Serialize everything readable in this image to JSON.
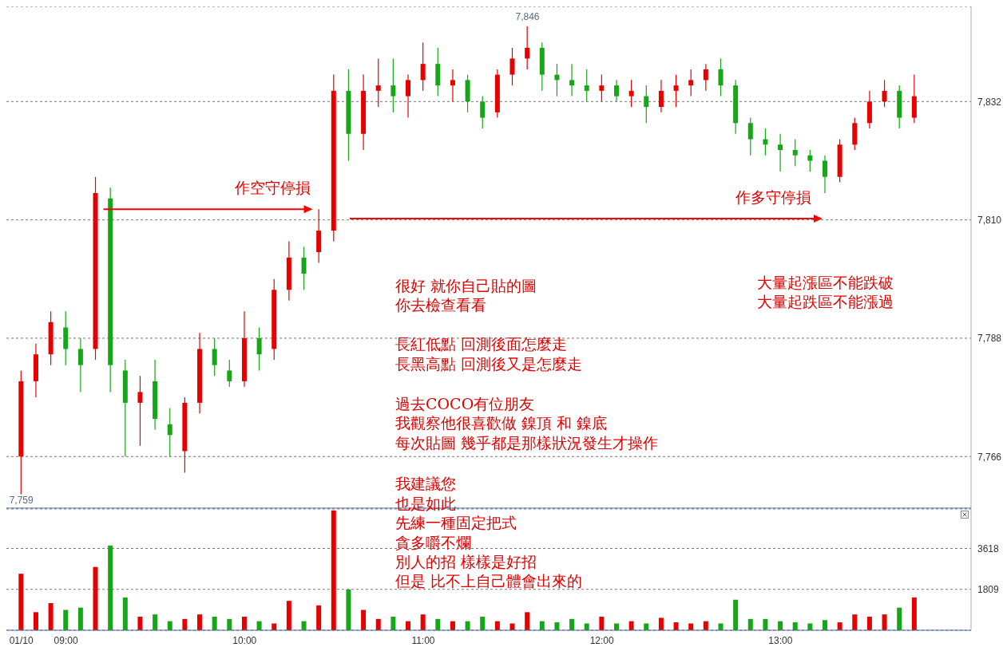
{
  "chart_data": [
    {
      "type": "candlestick",
      "x": [
        "--01-10T08:45",
        "--01-10T08:50",
        "--01-10T08:55",
        "--01-10T09:00",
        "--01-10T09:05",
        "--01-10T09:10",
        "--01-10T09:15",
        "--01-10T09:20",
        "--01-10T09:25",
        "--01-10T09:30",
        "--01-10T09:35",
        "--01-10T09:40",
        "--01-10T09:45",
        "--01-10T09:50",
        "--01-10T09:55",
        "--01-10T10:00",
        "--01-10T10:05",
        "--01-10T10:10",
        "--01-10T10:15",
        "--01-10T10:20",
        "--01-10T10:25",
        "--01-10T10:30",
        "--01-10T10:35",
        "--01-10T10:40",
        "--01-10T10:45",
        "--01-10T10:50",
        "--01-10T10:55",
        "--01-10T11:00",
        "--01-10T11:05",
        "--01-10T11:10",
        "--01-10T11:15",
        "--01-10T11:20",
        "--01-10T11:25",
        "--01-10T11:30",
        "--01-10T11:35",
        "--01-10T11:40",
        "--01-10T11:45",
        "--01-10T11:50",
        "--01-10T11:55",
        "--01-10T12:00",
        "--01-10T12:05",
        "--01-10T12:10",
        "--01-10T12:15",
        "--01-10T12:20",
        "--01-10T12:25",
        "--01-10T12:30",
        "--01-10T12:35",
        "--01-10T12:40",
        "--01-10T12:45",
        "--01-10T12:50",
        "--01-10T12:55",
        "--01-10T13:00",
        "--01-10T13:05",
        "--01-10T13:10",
        "--01-10T13:15",
        "--01-10T13:20",
        "--01-10T13:25",
        "--01-10T13:30",
        "--01-10T13:35",
        "--01-10T13:40",
        "--01-10T13:45"
      ],
      "ohlc": [
        [
          7766,
          7782,
          7759,
          7780
        ],
        [
          7780,
          7787,
          7777,
          7785
        ],
        [
          7785,
          7793,
          7783,
          7791
        ],
        [
          7790,
          7793,
          7783,
          7786
        ],
        [
          7786,
          7788,
          7778,
          7783
        ],
        [
          7786,
          7818,
          7784,
          7815
        ],
        [
          7814,
          7816,
          7778,
          7783
        ],
        [
          7782,
          7784,
          7766,
          7776
        ],
        [
          7776,
          7781,
          7768,
          7778
        ],
        [
          7780,
          7784,
          7771,
          7773
        ],
        [
          7772,
          7775,
          7766,
          7770
        ],
        [
          7767,
          7777,
          7763,
          7776
        ],
        [
          7776,
          7789,
          7774,
          7786
        ],
        [
          7786,
          7788,
          7781,
          7783
        ],
        [
          7782,
          7784,
          7779,
          7780
        ],
        [
          7780,
          7793,
          7779,
          7788
        ],
        [
          7788,
          7790,
          7782,
          7785
        ],
        [
          7786,
          7799,
          7784,
          7797
        ],
        [
          7797,
          7806,
          7795,
          7803
        ],
        [
          7803,
          7805,
          7797,
          7800
        ],
        [
          7804,
          7812,
          7802,
          7808
        ],
        [
          7808,
          7837,
          7806,
          7834
        ],
        [
          7834,
          7838,
          7821,
          7826
        ],
        [
          7826,
          7837,
          7823,
          7834
        ],
        [
          7834,
          7840,
          7831,
          7835
        ],
        [
          7835,
          7840,
          7830,
          7833
        ],
        [
          7833,
          7837,
          7829,
          7836
        ],
        [
          7836,
          7843,
          7834,
          7839
        ],
        [
          7839,
          7842,
          7833,
          7835
        ],
        [
          7835,
          7838,
          7832,
          7836
        ],
        [
          7836,
          7837,
          7830,
          7832
        ],
        [
          7832,
          7833,
          7827,
          7829
        ],
        [
          7830,
          7838,
          7829,
          7837
        ],
        [
          7837,
          7842,
          7835,
          7840
        ],
        [
          7840,
          7846,
          7838,
          7842
        ],
        [
          7842,
          7843,
          7834,
          7837
        ],
        [
          7837,
          7839,
          7833,
          7836
        ],
        [
          7836,
          7839,
          7833,
          7835
        ],
        [
          7835,
          7838,
          7832,
          7834
        ],
        [
          7834,
          7837,
          7832,
          7835
        ],
        [
          7835,
          7836,
          7832,
          7833
        ],
        [
          7833,
          7836,
          7831,
          7834
        ],
        [
          7833,
          7835,
          7828,
          7831
        ],
        [
          7831,
          7836,
          7830,
          7834
        ],
        [
          7834,
          7837,
          7831,
          7835
        ],
        [
          7835,
          7838,
          7833,
          7836
        ],
        [
          7836,
          7839,
          7834,
          7838
        ],
        [
          7838,
          7840,
          7833,
          7835
        ],
        [
          7835,
          7836,
          7826,
          7828
        ],
        [
          7828,
          7829,
          7822,
          7825
        ],
        [
          7825,
          7827,
          7822,
          7824
        ],
        [
          7824,
          7826,
          7819,
          7823
        ],
        [
          7823,
          7825,
          7820,
          7822
        ],
        [
          7822,
          7823,
          7819,
          7821
        ],
        [
          7821,
          7822,
          7815,
          7818
        ],
        [
          7818,
          7825,
          7817,
          7824
        ],
        [
          7824,
          7829,
          7823,
          7828
        ],
        [
          7828,
          7834,
          7827,
          7832
        ],
        [
          7832,
          7836,
          7831,
          7834
        ],
        [
          7834,
          7835,
          7827,
          7829
        ],
        [
          7829,
          7837,
          7828,
          7833
        ]
      ],
      "colors": [
        "#e80000",
        "#e80000",
        "#e80000",
        "#17a617",
        "#17a617",
        "#e80000",
        "#17a617",
        "#17a617",
        "#e80000",
        "#17a617",
        "#17a617",
        "#e80000",
        "#e80000",
        "#17a617",
        "#17a617",
        "#e80000",
        "#17a617",
        "#e80000",
        "#e80000",
        "#17a617",
        "#e80000",
        "#e80000",
        "#17a617",
        "#e80000",
        "#e80000",
        "#17a617",
        "#e80000",
        "#e80000",
        "#17a617",
        "#e80000",
        "#17a617",
        "#17a617",
        "#e80000",
        "#e80000",
        "#e80000",
        "#17a617",
        "#17a617",
        "#17a617",
        "#17a617",
        "#e80000",
        "#17a617",
        "#e80000",
        "#17a617",
        "#e80000",
        "#e80000",
        "#e80000",
        "#e80000",
        "#17a617",
        "#17a617",
        "#17a617",
        "#17a617",
        "#17a617",
        "#17a617",
        "#17a617",
        "#17a617",
        "#e80000",
        "#e80000",
        "#e80000",
        "#e80000",
        "#17a617",
        "#e80000"
      ],
      "xlim": [
        "--01-10T08:40",
        "--01-10T14:04"
      ],
      "ylim": [
        7756.4,
        7849.7
      ],
      "yticks": [
        {
          "value": 7766,
          "label": "7,766"
        },
        {
          "value": 7788,
          "label": "7,788"
        },
        {
          "value": 7810,
          "label": "7,810"
        },
        {
          "value": 7832,
          "label": "7,832"
        }
      ],
      "grid": "y",
      "tick_labels": "y",
      "annotations": [
        {
          "text": "作空守停損",
          "x": "--01-10T10:25",
          "y": 7812
        },
        "作多守停損",
        {
          "text": "7,846",
          "x": "--01-10T11:35",
          "y": 7846
        },
        {
          "text": "7,759",
          "x": "--01-10T08:45",
          "y": 7759
        },
        "很好 就你自己貼的圖",
        "你去檢查看看",
        "長紅低點 回測後面怎麼走",
        "長黑高點 回測後又是怎麼走",
        "過去COCO有位朋友",
        "我觀察他很喜歡做 鎳頂 和 鎳底",
        "每次貼圖 幾乎都是那樣狀況發生才操作",
        "我建議您",
        "也是如此",
        "先練一種固定把式",
        "貪多嚼不爛",
        "別人的招 樣樣是好招",
        "但是 比不上自己體會出來的",
        "大量起漲區不能跌破",
        "大量起跌區不能漲過"
      ]
    },
    {
      "type": "bar",
      "x": [
        "--01-10T08:45",
        "--01-10T08:50",
        "--01-10T08:55",
        "--01-10T09:00",
        "--01-10T09:05",
        "--01-10T09:10",
        "--01-10T09:15",
        "--01-10T09:20",
        "--01-10T09:25",
        "--01-10T09:30",
        "--01-10T09:35",
        "--01-10T09:40",
        "--01-10T09:45",
        "--01-10T09:50",
        "--01-10T09:55",
        "--01-10T10:00",
        "--01-10T10:05",
        "--01-10T10:10",
        "--01-10T10:15",
        "--01-10T10:20",
        "--01-10T10:25",
        "--01-10T10:30",
        "--01-10T10:35",
        "--01-10T10:40",
        "--01-10T10:45",
        "--01-10T10:50",
        "--01-10T10:55",
        "--01-10T11:00",
        "--01-10T11:05",
        "--01-10T11:10",
        "--01-10T11:15",
        "--01-10T11:20",
        "--01-10T11:25",
        "--01-10T11:30",
        "--01-10T11:35",
        "--01-10T11:40",
        "--01-10T11:45",
        "--01-10T11:50",
        "--01-10T11:55",
        "--01-10T12:00",
        "--01-10T12:05",
        "--01-10T12:10",
        "--01-10T12:15",
        "--01-10T12:20",
        "--01-10T12:25",
        "--01-10T12:30",
        "--01-10T12:35",
        "--01-10T12:40",
        "--01-10T12:45",
        "--01-10T12:50",
        "--01-10T12:55",
        "--01-10T13:00",
        "--01-10T13:05",
        "--01-10T13:10",
        "--01-10T13:15",
        "--01-10T13:20",
        "--01-10T13:25",
        "--01-10T13:30",
        "--01-10T13:35",
        "--01-10T13:40",
        "--01-10T13:45"
      ],
      "values": [
        2500,
        800,
        1200,
        900,
        1000,
        2800,
        3750,
        1450,
        600,
        700,
        400,
        500,
        700,
        600,
        500,
        600,
        400,
        300,
        1300,
        400,
        1100,
        5300,
        1800,
        900,
        500,
        600,
        400,
        700,
        500,
        400,
        400,
        600,
        400,
        300,
        800,
        400,
        350,
        500,
        300,
        600,
        300,
        400,
        300,
        550,
        350,
        300,
        400,
        300,
        1350,
        500,
        500,
        400,
        350,
        300,
        450,
        350,
        700,
        600,
        700,
        1000,
        1450
      ],
      "colors": [
        "#e80000",
        "#e80000",
        "#e80000",
        "#17a617",
        "#17a617",
        "#e80000",
        "#17a617",
        "#17a617",
        "#e80000",
        "#17a617",
        "#17a617",
        "#e80000",
        "#e80000",
        "#17a617",
        "#17a617",
        "#e80000",
        "#17a617",
        "#e80000",
        "#e80000",
        "#17a617",
        "#e80000",
        "#e80000",
        "#17a617",
        "#e80000",
        "#e80000",
        "#17a617",
        "#e80000",
        "#e80000",
        "#17a617",
        "#e80000",
        "#17a617",
        "#17a617",
        "#e80000",
        "#e80000",
        "#e80000",
        "#17a617",
        "#17a617",
        "#17a617",
        "#17a617",
        "#e80000",
        "#17a617",
        "#e80000",
        "#17a617",
        "#e80000",
        "#e80000",
        "#e80000",
        "#e80000",
        "#17a617",
        "#17a617",
        "#17a617",
        "#17a617",
        "#17a617",
        "#17a617",
        "#17a617",
        "#17a617",
        "#e80000",
        "#e80000",
        "#e80000",
        "#e80000",
        "#17a617",
        "#e80000"
      ],
      "xlim": [
        "--01-10T08:40",
        "--01-10T14:04"
      ],
      "xticks": [
        {
          "value": "--01-10T08:45",
          "label": "01/10"
        },
        {
          "value": "--01-10T09:00",
          "label": "09:00"
        },
        {
          "value": "--01-10T10:00",
          "label": "10:00"
        },
        {
          "value": "--01-10T11:00",
          "label": "11:00"
        },
        {
          "value": "--01-10T12:00",
          "label": "12:00"
        },
        {
          "value": "--01-10T13:00",
          "label": "13:00"
        }
      ],
      "ylim": [
        0,
        5365
      ],
      "yticks": [
        1809,
        3618
      ],
      "grid": "y"
    }
  ]
}
